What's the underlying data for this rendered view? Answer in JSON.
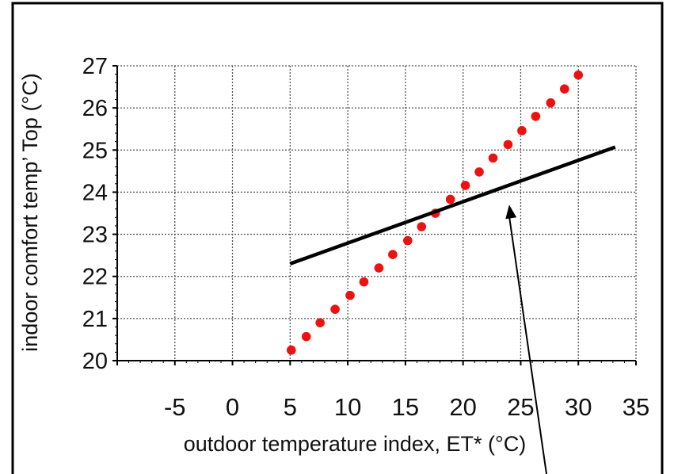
{
  "chart_data": {
    "type": "scatter",
    "title": "",
    "xlabel": "outdoor temperature index, ET* (°C)",
    "ylabel": "indoor comfort  temp’ Top (°C)",
    "xlim": [
      -10,
      35
    ],
    "ylim": [
      20,
      27
    ],
    "x_ticks": [
      -5,
      0,
      5,
      10,
      15,
      20,
      25,
      30,
      35
    ],
    "x_tick_labels": [
      "-5",
      "0",
      "5",
      "10",
      "15",
      "20",
      "25",
      "30",
      "35"
    ],
    "y_ticks": [
      20,
      21,
      22,
      23,
      24,
      25,
      26,
      27
    ],
    "y_tick_labels": [
      "20",
      "21",
      "22",
      "23",
      "24",
      "25",
      "26",
      "27"
    ],
    "grid": true,
    "legend": "none",
    "series": [
      {
        "kind": "points",
        "color": "#ee1111",
        "x": [
          5.1,
          6.4,
          7.6,
          8.9,
          10.2,
          11.4,
          12.7,
          13.9,
          15.2,
          16.4,
          17.6,
          18.9,
          20.2,
          21.4,
          22.6,
          23.9,
          25.1,
          26.3,
          27.6,
          28.8,
          30.0
        ],
        "y": [
          20.25,
          20.57,
          20.9,
          21.22,
          21.55,
          21.87,
          22.2,
          22.52,
          22.85,
          23.18,
          23.5,
          23.83,
          24.16,
          24.48,
          24.81,
          25.13,
          25.46,
          25.8,
          26.12,
          26.45,
          26.78
        ]
      },
      {
        "kind": "line",
        "color": "#000000",
        "x": [
          5.0,
          33.2
        ],
        "y": [
          22.3,
          25.07
        ]
      }
    ],
    "annotations": [
      {
        "kind": "arrow",
        "color": "#000000",
        "target": [
          24.0,
          23.85
        ]
      }
    ]
  }
}
